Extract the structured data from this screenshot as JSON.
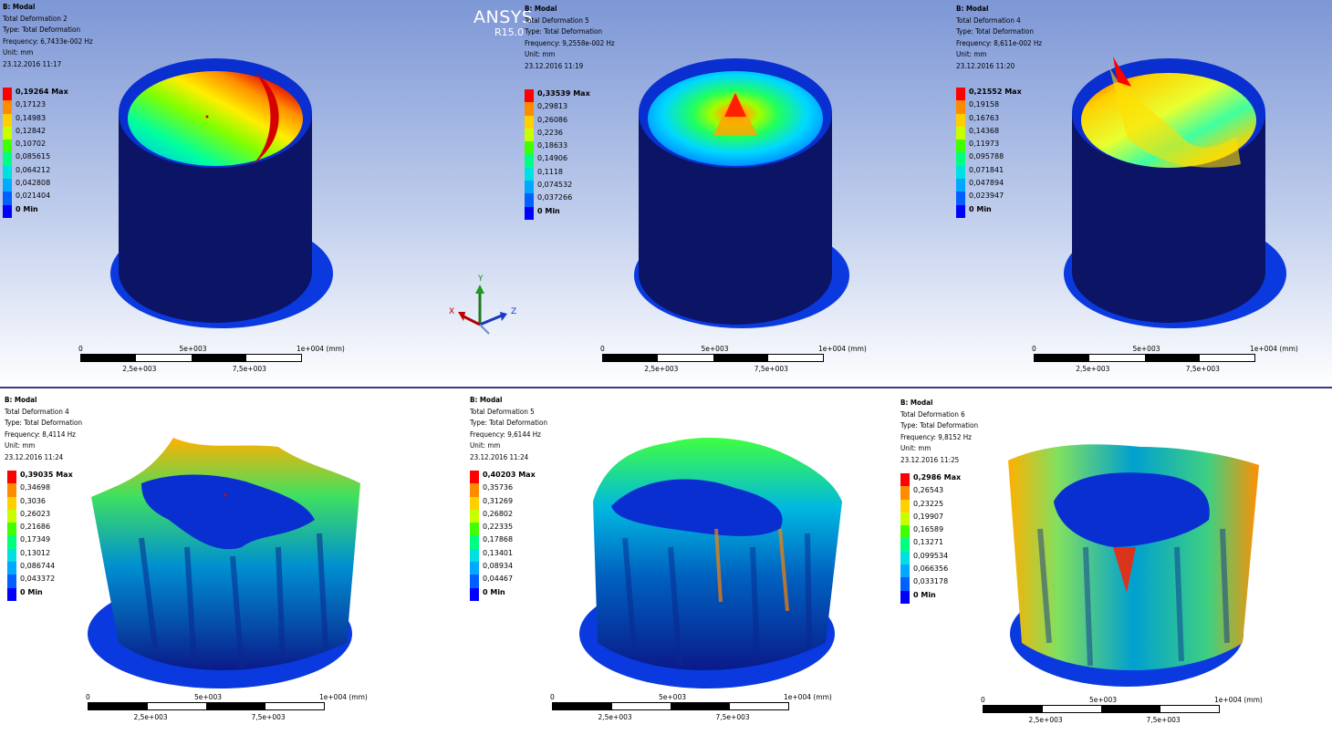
{
  "brand": {
    "name": "ANSYS",
    "version": "R15.0"
  },
  "triad": {
    "x": "X",
    "y": "Y",
    "z": "Z"
  },
  "palette": [
    "#0000ff",
    "#0053ff",
    "#00a6ff",
    "#00f2e6",
    "#00ff74",
    "#40ff00",
    "#a6ff00",
    "#ffee00",
    "#ffb000",
    "#ff6200",
    "#ff0000"
  ],
  "panels": [
    {
      "info": [
        "B: Modal",
        "Total Deformation 2",
        "Type: Total Deformation",
        "Frequency: 6,7433e-002 Hz",
        "Unit: mm",
        "23.12.2016 11:17"
      ],
      "legend": [
        "0,19264 Max",
        "0,17123",
        "0,14983",
        "0,12842",
        "0,10702",
        "0,085615",
        "0,064212",
        "0,042808",
        "0,021404",
        "0 Min"
      ],
      "scale": {
        "start": "0",
        "mid": "5e+003",
        "end": "1e+004 (mm)",
        "q1": "2,5e+003",
        "q3": "7,5e+003"
      }
    },
    {
      "info": [
        "B: Modal",
        "Total Deformation 5",
        "Type: Total Deformation",
        "Frequency: 9,2558e-002 Hz",
        "Unit: mm",
        "23.12.2016 11:19"
      ],
      "legend": [
        "0,33539 Max",
        "0,29813",
        "0,26086",
        "0,2236",
        "0,18633",
        "0,14906",
        "0,1118",
        "0,074532",
        "0,037266",
        "0 Min"
      ],
      "scale": {
        "start": "0",
        "mid": "5e+003",
        "end": "1e+004 (mm)",
        "q1": "2,5e+003",
        "q3": "7,5e+003"
      }
    },
    {
      "info": [
        "B: Modal",
        "Total Deformation 4",
        "Type: Total Deformation",
        "Frequency: 8,611e-002 Hz",
        "Unit: mm",
        "23.12.2016 11:20"
      ],
      "legend": [
        "0,21552 Max",
        "0,19158",
        "0,16763",
        "0,14368",
        "0,11973",
        "0,095788",
        "0,071841",
        "0,047894",
        "0,023947",
        "0 Min"
      ],
      "scale": {
        "start": "0",
        "mid": "5e+003",
        "end": "1e+004 (mm)",
        "q1": "2,5e+003",
        "q3": "7,5e+003"
      }
    },
    {
      "info": [
        "B: Modal",
        "Total Deformation 4",
        "Type: Total Deformation",
        "Frequency: 8,4114 Hz",
        "Unit: mm",
        "23.12.2016 11:24"
      ],
      "legend": [
        "0,39035 Max",
        "0,34698",
        "0,3036",
        "0,26023",
        "0,21686",
        "0,17349",
        "0,13012",
        "0,086744",
        "0,043372",
        "0 Min"
      ],
      "scale": {
        "start": "0",
        "mid": "5e+003",
        "end": "1e+004 (mm)",
        "q1": "2,5e+003",
        "q3": "7,5e+003"
      }
    },
    {
      "info": [
        "B: Modal",
        "Total Deformation 5",
        "Type: Total Deformation",
        "Frequency: 9,6144 Hz",
        "Unit: mm",
        "23.12.2016 11:24"
      ],
      "legend": [
        "0,40203 Max",
        "0,35736",
        "0,31269",
        "0,26802",
        "0,22335",
        "0,17868",
        "0,13401",
        "0,08934",
        "0,04467",
        "0 Min"
      ],
      "scale": {
        "start": "0",
        "mid": "5e+003",
        "end": "1e+004 (mm)",
        "q1": "2,5e+003",
        "q3": "7,5e+003"
      }
    },
    {
      "info": [
        "B: Modal",
        "Total Deformation 6",
        "Type: Total Deformation",
        "Frequency: 9,8152 Hz",
        "Unit: mm",
        "23.12.2016 11:25"
      ],
      "legend": [
        "0,2986 Max",
        "0,26543",
        "0,23225",
        "0,19907",
        "0,16589",
        "0,13271",
        "0,099534",
        "0,066356",
        "0,033178",
        "0 Min"
      ],
      "scale": {
        "start": "0",
        "mid": "5e+003",
        "end": "1e+004 (mm)",
        "q1": "2,5e+003",
        "q3": "7,5e+003"
      }
    }
  ]
}
